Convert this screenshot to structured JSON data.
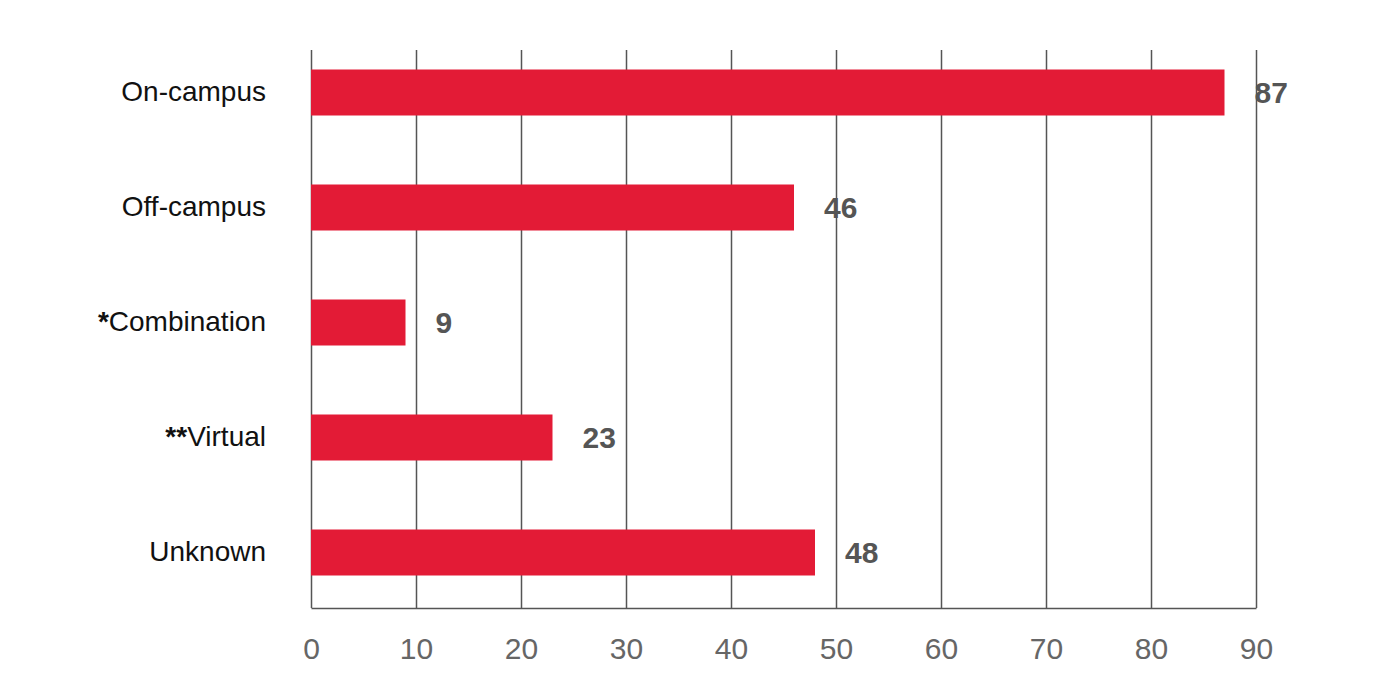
{
  "chart_data": {
    "type": "bar",
    "orientation": "horizontal",
    "categories": [
      "On-campus",
      "Off-campus",
      "*Combination",
      "**Virtual",
      "Unknown"
    ],
    "values": [
      87,
      46,
      9,
      23,
      48
    ],
    "color": "#e31b36",
    "xlim": [
      0,
      90
    ],
    "xticks": [
      0,
      10,
      20,
      30,
      40,
      50,
      60,
      70,
      80,
      90
    ],
    "grid": true,
    "data_labels": true
  }
}
